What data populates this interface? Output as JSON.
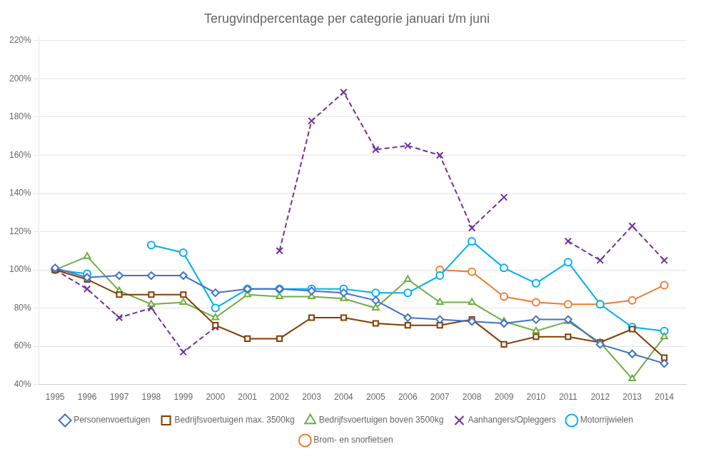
{
  "chart_data": {
    "type": "line",
    "title": "Terugvindpercentage per categorie januari t/m juni",
    "x": [
      1995,
      1996,
      1997,
      1998,
      1999,
      2000,
      2001,
      2002,
      2003,
      2004,
      2005,
      2006,
      2007,
      2008,
      2009,
      2010,
      2011,
      2012,
      2013,
      2014
    ],
    "series": [
      {
        "name": "Personenvoertuigen",
        "color": "#4472C4",
        "marker": "diamond",
        "line_style": "solid",
        "values": [
          101,
          96,
          97,
          97,
          97,
          88,
          90,
          90,
          89,
          88,
          84,
          75,
          74,
          73,
          72,
          74,
          74,
          61,
          56,
          51
        ]
      },
      {
        "name": "Bedrijfsvoertuigen max. 3500kg",
        "color": "#833C00",
        "marker": "square",
        "line_style": "solid",
        "values": [
          100,
          95,
          87,
          87,
          87,
          71,
          64,
          64,
          75,
          75,
          72,
          71,
          71,
          74,
          61,
          65,
          65,
          62,
          69,
          54
        ]
      },
      {
        "name": "Bedrijfsvoertuigen boven 3500kg",
        "color": "#70AD47",
        "marker": "triangle",
        "line_style": "solid",
        "values": [
          100,
          107,
          89,
          82,
          83,
          75,
          87,
          86,
          86,
          85,
          80,
          95,
          83,
          83,
          73,
          68,
          73,
          62,
          43,
          65
        ]
      },
      {
        "name": "Aanhangers/Opleggers",
        "color": "#7030A0",
        "marker": "x",
        "line_style": "dashed",
        "values": [
          100,
          90,
          75,
          80,
          57,
          70,
          null,
          110,
          178,
          193,
          163,
          165,
          160,
          122,
          138,
          null,
          115,
          105,
          123,
          105
        ]
      },
      {
        "name": "Motorrijwielen",
        "color": "#00B0F0",
        "marker": "circle",
        "line_style": "solid",
        "values": [
          100,
          98,
          null,
          113,
          109,
          80,
          90,
          90,
          90,
          90,
          88,
          88,
          97,
          115,
          101,
          93,
          104,
          82,
          70,
          68
        ]
      },
      {
        "name": "Brom- en snorfietsen",
        "color": "#ED7D31",
        "marker": "circle",
        "line_style": "solid",
        "values": [
          null,
          null,
          null,
          null,
          null,
          null,
          null,
          null,
          null,
          null,
          null,
          null,
          100,
          99,
          86,
          83,
          82,
          82,
          84,
          92
        ]
      }
    ],
    "xlim": [
      1994.5,
      2014.7
    ],
    "xticks": [
      1995,
      1996,
      1997,
      1998,
      1999,
      2000,
      2001,
      2002,
      2003,
      2004,
      2005,
      2006,
      2007,
      2008,
      2009,
      2010,
      2011,
      2012,
      2013,
      2014
    ],
    "ylim": [
      40,
      222
    ],
    "yticks": [
      {
        "value": 40,
        "label": "40%"
      },
      {
        "value": 60,
        "label": "60%"
      },
      {
        "value": 80,
        "label": "80%"
      },
      {
        "value": 100,
        "label": "100%"
      },
      {
        "value": 120,
        "label": "120%"
      },
      {
        "value": 140,
        "label": "140%"
      },
      {
        "value": 160,
        "label": "160%"
      },
      {
        "value": 180,
        "label": "180%"
      },
      {
        "value": 200,
        "label": "200%"
      },
      {
        "value": 220,
        "label": "220%"
      }
    ],
    "grid": "y",
    "legend": "bottom"
  }
}
